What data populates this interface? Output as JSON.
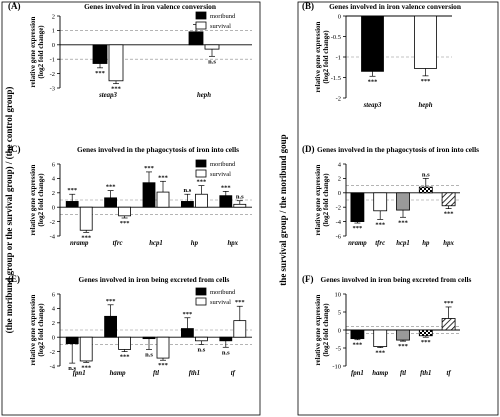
{
  "side_labels": {
    "left": "(the moribund group or the survival group) / (the control group)",
    "right": "the survival group / the moribund goup"
  },
  "chart_data": [
    {
      "type": "bar",
      "panel": "(A)",
      "title": "Genes involved in iron valence conversion",
      "ylabel_1": "relative gene expression",
      "ylabel_2": "(log2 fold change)",
      "categories": [
        "steap3",
        "heph"
      ],
      "ylim": [
        -3,
        2
      ],
      "yticks": [
        -3,
        -2,
        -1,
        0,
        1,
        2
      ],
      "reference_lines": [
        1,
        -1
      ],
      "legend": [
        "moribund",
        "survival"
      ],
      "series": [
        {
          "name": "moribund",
          "values": [
            -1.3,
            0.9
          ],
          "errors": [
            0.3,
            0.5
          ],
          "sig": [
            "***",
            ""
          ]
        },
        {
          "name": "survival",
          "values": [
            -2.5,
            -0.3
          ],
          "errors": [
            0.2,
            0.5
          ],
          "sig": [
            "***",
            "n.s"
          ]
        }
      ]
    },
    {
      "type": "bar",
      "panel": "(B)",
      "title": "Genes involved in iron valence conversion",
      "ylabel_1": "relative gene expression",
      "ylabel_2": "(log2 fold change)",
      "categories": [
        "steap3",
        "heph"
      ],
      "ylim": [
        -2.0,
        0.0
      ],
      "yticks": [
        -2.0,
        -1.5,
        -1.0,
        -0.5,
        0.0
      ],
      "reference_lines": [
        -1
      ],
      "series": [
        {
          "values": [
            -1.35,
            -1.28
          ],
          "errors": [
            0.12,
            0.18
          ],
          "sig": [
            "***",
            "***"
          ],
          "fills": [
            "black",
            "white"
          ]
        }
      ]
    },
    {
      "type": "bar",
      "panel": "(C)",
      "title": "Genes involved in the phagocytosis of iron into cells",
      "ylabel_1": "relative gene expression",
      "ylabel_2": "(log2 fold change)",
      "categories": [
        "nramp",
        "tfrc",
        "hcp1",
        "hp",
        "hpx"
      ],
      "ylim": [
        -4,
        6
      ],
      "yticks": [
        -4,
        -2,
        0,
        2,
        4,
        6
      ],
      "reference_lines": [
        1,
        -1
      ],
      "legend": [
        "moribund",
        "survival"
      ],
      "series": [
        {
          "name": "moribund",
          "values": [
            0.8,
            1.3,
            3.4,
            0.8,
            1.6
          ],
          "errors": [
            1.0,
            1.0,
            1.5,
            1.0,
            0.6
          ],
          "sig": [
            "***",
            "***",
            "***",
            "n.s",
            "***"
          ]
        },
        {
          "name": "survival",
          "values": [
            -3.2,
            -1.2,
            2.1,
            1.8,
            0.4
          ],
          "errors": [
            0.3,
            0.3,
            1.5,
            1.2,
            0.5
          ],
          "sig": [
            "***",
            "***",
            "***",
            "***",
            "n.s"
          ]
        }
      ]
    },
    {
      "type": "bar",
      "panel": "(D)",
      "title": "Genes involved in the phagocytosis of iron into cells",
      "ylabel_1": "relative gene expression",
      "ylabel_2": "(log2 fold change)",
      "categories": [
        "nramp",
        "tfrc",
        "hcp1",
        "hp",
        "hpx"
      ],
      "ylim": [
        -6,
        4
      ],
      "yticks": [
        -6,
        -4,
        -2,
        0,
        2,
        4
      ],
      "reference_lines": [
        1,
        -1
      ],
      "series": [
        {
          "values": [
            -4.0,
            -2.5,
            -2.4,
            0.8,
            -1.8
          ],
          "errors": [
            0.2,
            1.2,
            1.0,
            1.2,
            0.4
          ],
          "sig": [
            "***",
            "***",
            "***",
            "n.s",
            "***"
          ],
          "fills": [
            "black",
            "white",
            "gray",
            "check",
            "hatch"
          ]
        }
      ]
    },
    {
      "type": "bar",
      "panel": "(E)",
      "title": "Genes involved in iron being excreted from cells",
      "ylabel_1": "relative gene expression",
      "ylabel_2": "(log2 fold change)",
      "categories": [
        "fpn1",
        "hamp",
        "ftl",
        "fth1",
        "tf"
      ],
      "ylim": [
        -4,
        6
      ],
      "yticks": [
        -4,
        -2,
        0,
        2,
        4,
        6
      ],
      "reference_lines": [
        1,
        -1
      ],
      "legend": [
        "moribund",
        "survival"
      ],
      "series": [
        {
          "name": "moribund",
          "values": [
            -0.9,
            2.9,
            -0.2,
            1.2,
            -0.5
          ],
          "errors": [
            2.7,
            1.6,
            1.5,
            1.5,
            0.9
          ],
          "sig": [
            "n.s",
            "***",
            "n.s",
            "***",
            "n.s"
          ]
        },
        {
          "name": "survival",
          "values": [
            -3.3,
            -1.7,
            -2.9,
            -0.5,
            2.3
          ],
          "errors": [
            0.2,
            0.3,
            0.3,
            0.5,
            2.0
          ],
          "sig": [
            "***",
            "***",
            "***",
            "n.s",
            "***"
          ]
        }
      ]
    },
    {
      "type": "bar",
      "panel": "(F)",
      "title": "Genes involved in iron being excreted from cells",
      "ylabel_1": "relative gene expression",
      "ylabel_2": "(log2 fold change)",
      "categories": [
        "fpn1",
        "hamp",
        "ftl",
        "fth1",
        "tf"
      ],
      "ylim": [
        -10,
        10
      ],
      "yticks": [
        -10,
        -5,
        0,
        5,
        10
      ],
      "reference_lines": [
        1,
        -1
      ],
      "series": [
        {
          "values": [
            -2.4,
            -4.6,
            -2.8,
            -1.6,
            3.2
          ],
          "errors": [
            0.3,
            0.3,
            0.3,
            0.4,
            3.2
          ],
          "sig": [
            "***",
            "***",
            "***",
            "***",
            "***"
          ],
          "fills": [
            "black",
            "white",
            "gray",
            "check",
            "hatch"
          ]
        }
      ]
    }
  ]
}
